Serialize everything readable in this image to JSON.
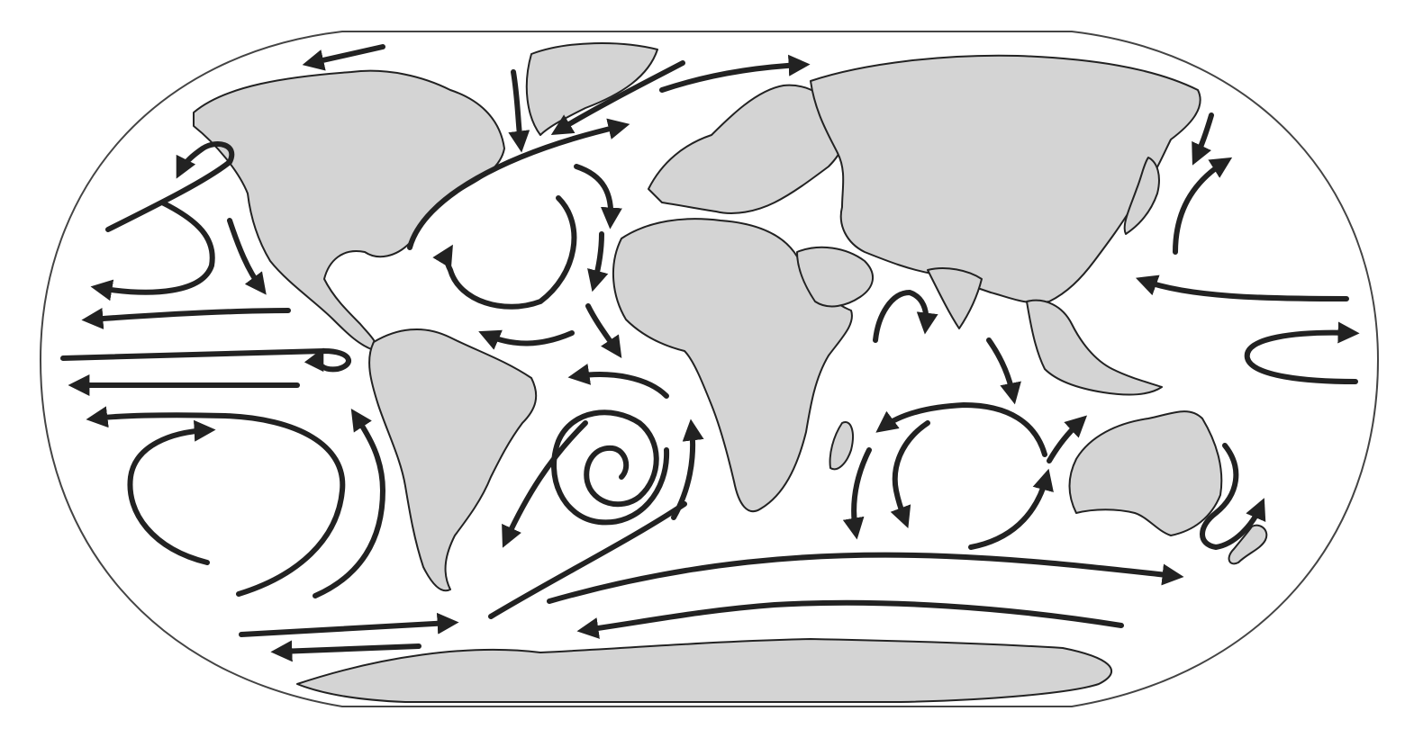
{
  "map": {
    "style": "world map, Robinson-like oval projection, ocean surface currents",
    "ocean_color": "#ffffff",
    "land_color": "#d4d4d4",
    "outline_color": "#222222",
    "arrow_color": "#222222",
    "landmasses": [
      "north-america",
      "greenland",
      "south-america",
      "europe",
      "africa",
      "asia",
      "arabia",
      "india",
      "southeast-asia",
      "japan",
      "australia",
      "new-zealand",
      "madagascar",
      "antarctica"
    ],
    "currents": [
      "north-pacific-gyre",
      "north-atlantic-gyre",
      "south-atlantic-gyre",
      "south-pacific-gyre",
      "indian-ocean-gyre",
      "antarctic-circumpolar",
      "kuroshio",
      "gulf-stream",
      "equatorial-currents"
    ]
  }
}
